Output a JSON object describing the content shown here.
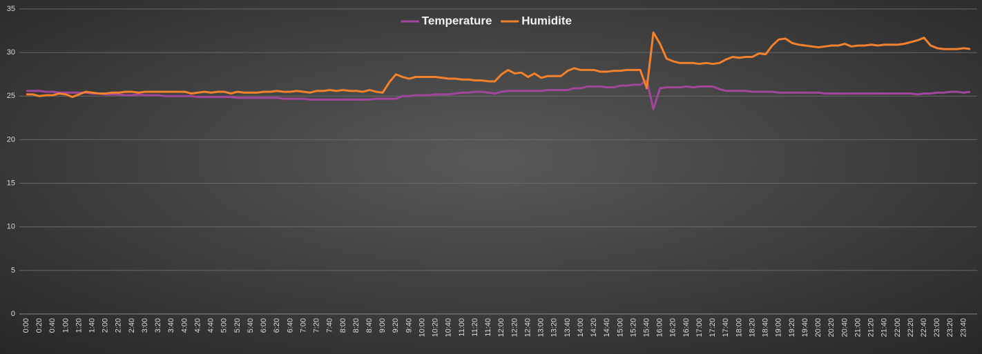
{
  "chart_data": {
    "type": "line",
    "categories": [
      "0:00",
      null,
      "0:20",
      null,
      "0:40",
      null,
      "1:00",
      null,
      "1:20",
      null,
      "1:40",
      null,
      "2:00",
      null,
      "2:20",
      null,
      "2:40",
      null,
      "3:00",
      null,
      "3:20",
      null,
      "3:40",
      null,
      "4:00",
      null,
      "4:20",
      null,
      "4:40",
      null,
      "5:00",
      null,
      "5:20",
      null,
      "5:40",
      null,
      "6:00",
      null,
      "6:20",
      null,
      "6:40",
      null,
      "7:00",
      null,
      "7:20",
      null,
      "7:40",
      null,
      "8:00",
      null,
      "8:20",
      null,
      "8:40",
      null,
      "9:00",
      null,
      "9:20",
      null,
      "9:40",
      null,
      "10:00",
      null,
      "10:20",
      null,
      "10:40",
      null,
      "11:00",
      null,
      "11:20",
      null,
      "11:40",
      null,
      "12:00",
      null,
      "12:20",
      null,
      "12:40",
      null,
      "13:00",
      null,
      "13:20",
      null,
      "13:40",
      null,
      "14:00",
      null,
      "14:20",
      null,
      "14:40",
      null,
      "15:00",
      null,
      "15:20",
      null,
      "15:40",
      null,
      "16:00",
      null,
      "16:20",
      null,
      "16:40",
      null,
      "17:00",
      null,
      "17:20",
      null,
      "17:40",
      null,
      "18:00",
      null,
      "18:20",
      null,
      "18:40",
      null,
      "19:00",
      null,
      "19:20",
      null,
      "19:40",
      null,
      "20:00",
      null,
      "20:20",
      null,
      "20:40",
      null,
      "21:00",
      null,
      "21:20",
      null,
      "21:40",
      null,
      "22:00",
      null,
      "22:20",
      null,
      "22:40",
      null,
      "23:00",
      null,
      "23:20",
      null,
      "23:40",
      null
    ],
    "series": [
      {
        "name": "Temperature",
        "color": "#a2459c",
        "values": [
          25.6,
          25.6,
          25.6,
          25.5,
          25.5,
          25.4,
          25.4,
          25.4,
          25.4,
          25.4,
          25.3,
          25.3,
          25.2,
          25.2,
          25.2,
          25.1,
          25.1,
          25.2,
          25.1,
          25.1,
          25.1,
          25.0,
          25.0,
          25.0,
          25.0,
          25.0,
          24.9,
          24.9,
          24.9,
          24.9,
          24.9,
          24.9,
          24.8,
          24.8,
          24.8,
          24.8,
          24.8,
          24.8,
          24.8,
          24.7,
          24.7,
          24.7,
          24.7,
          24.6,
          24.6,
          24.6,
          24.6,
          24.6,
          24.6,
          24.6,
          24.6,
          24.6,
          24.6,
          24.7,
          24.7,
          24.7,
          24.7,
          25.0,
          25.0,
          25.1,
          25.1,
          25.1,
          25.2,
          25.2,
          25.2,
          25.3,
          25.4,
          25.4,
          25.5,
          25.5,
          25.4,
          25.3,
          25.5,
          25.6,
          25.6,
          25.6,
          25.6,
          25.6,
          25.6,
          25.7,
          25.7,
          25.7,
          25.7,
          25.9,
          25.9,
          26.1,
          26.1,
          26.1,
          26.0,
          26.0,
          26.2,
          26.2,
          26.3,
          26.3,
          26.8,
          23.5,
          25.9,
          26.0,
          26.0,
          26.0,
          26.1,
          26.0,
          26.1,
          26.1,
          26.1,
          25.8,
          25.6,
          25.6,
          25.6,
          25.6,
          25.5,
          25.5,
          25.5,
          25.5,
          25.4,
          25.4,
          25.4,
          25.4,
          25.4,
          25.4,
          25.4,
          25.3,
          25.3,
          25.3,
          25.3,
          25.3,
          25.3,
          25.3,
          25.3,
          25.3,
          25.3,
          25.3,
          25.3,
          25.3,
          25.3,
          25.2,
          25.3,
          25.3,
          25.4,
          25.4,
          25.5,
          25.5,
          25.4,
          25.5
        ]
      },
      {
        "name": "Humidite",
        "color": "#f4812b",
        "values": [
          25.2,
          25.2,
          25.0,
          25.1,
          25.1,
          25.3,
          25.2,
          24.9,
          25.2,
          25.5,
          25.4,
          25.3,
          25.3,
          25.4,
          25.4,
          25.5,
          25.5,
          25.4,
          25.5,
          25.5,
          25.5,
          25.5,
          25.5,
          25.5,
          25.5,
          25.3,
          25.4,
          25.5,
          25.4,
          25.5,
          25.5,
          25.3,
          25.5,
          25.4,
          25.4,
          25.4,
          25.5,
          25.5,
          25.6,
          25.5,
          25.5,
          25.6,
          25.5,
          25.4,
          25.6,
          25.6,
          25.7,
          25.6,
          25.7,
          25.6,
          25.6,
          25.5,
          25.7,
          25.5,
          25.4,
          26.6,
          27.5,
          27.2,
          27.0,
          27.2,
          27.2,
          27.2,
          27.2,
          27.1,
          27.0,
          27.0,
          26.9,
          26.9,
          26.8,
          26.8,
          26.7,
          26.7,
          27.5,
          28.0,
          27.6,
          27.7,
          27.2,
          27.6,
          27.1,
          27.3,
          27.3,
          27.3,
          27.9,
          28.2,
          28.0,
          28.0,
          28.0,
          27.8,
          27.8,
          27.9,
          27.9,
          28.0,
          28.0,
          28.0,
          25.9,
          32.3,
          31.0,
          29.3,
          29.0,
          28.8,
          28.8,
          28.8,
          28.7,
          28.8,
          28.7,
          28.8,
          29.2,
          29.5,
          29.4,
          29.5,
          29.5,
          29.9,
          29.8,
          30.8,
          31.5,
          31.6,
          31.1,
          30.9,
          30.8,
          30.7,
          30.6,
          30.7,
          30.8,
          30.8,
          31.0,
          30.7,
          30.8,
          30.8,
          30.9,
          30.8,
          30.9,
          30.9,
          30.9,
          31.0,
          31.2,
          31.4,
          31.7,
          30.8,
          30.5,
          30.4,
          30.4,
          30.4,
          30.5,
          30.4
        ]
      }
    ],
    "ylim": [
      0,
      35
    ],
    "yticks": [
      0,
      5,
      10,
      15,
      20,
      25,
      30,
      35
    ],
    "grid": true,
    "legend": "top"
  }
}
